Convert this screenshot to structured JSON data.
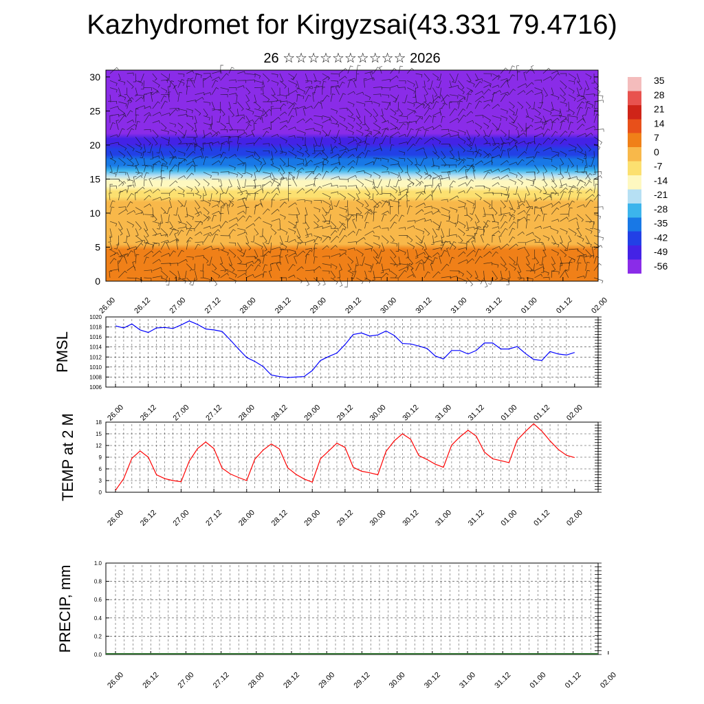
{
  "page": {
    "title": "Kazhydromet for Kirgyzsai(43.331 79.4716)",
    "subtitle": "26 ☆☆☆☆☆☆☆☆☆☆ 2026"
  },
  "chart_data": [
    {
      "id": "upper-air",
      "type": "heatmap",
      "title": "Kazhydromet for Kirgyzsai(43.331 79.4716)",
      "subtitle": "26 ☆☆☆☆☆☆☆☆☆☆ 2026",
      "x_tick_labels": [
        "26.00",
        "26.12",
        "27.00",
        "27.12",
        "28.00",
        "28.12",
        "29.00",
        "29.12",
        "30.00",
        "30.12",
        "31.00",
        "31.12",
        "01.00",
        "01.12",
        "02.00"
      ],
      "y_ticks": [
        0,
        5,
        10,
        15,
        20,
        25,
        30
      ],
      "ylim": [
        0,
        31
      ],
      "colorbar": {
        "labels": [
          "35",
          "28",
          "21",
          "14",
          "7",
          "0",
          "-7",
          "-14",
          "-21",
          "-28",
          "-35",
          "-42",
          "-49",
          "-56"
        ],
        "colors": [
          "#f4bcbc",
          "#e8524e",
          "#cf2418",
          "#e8501a",
          "#f08018",
          "#f8b84a",
          "#fce070",
          "#fef8c0",
          "#b6e0f4",
          "#3cb4ec",
          "#1878e6",
          "#2240e6",
          "#4422e6",
          "#8a2ce8"
        ]
      },
      "temperature_profile": {
        "levels": [
          0,
          3,
          6,
          9,
          12,
          14,
          15.5,
          17,
          19,
          21,
          22,
          23.5,
          26,
          31
        ],
        "values": [
          12,
          9,
          6,
          3,
          0,
          -8,
          -18,
          -28,
          -38,
          -47,
          -55,
          -60,
          -62,
          -64
        ]
      }
    },
    {
      "id": "pmsl",
      "type": "line",
      "ylabel": "PMSL",
      "ylim": [
        1006,
        1020
      ],
      "y_ticks": [
        1006,
        1008,
        1010,
        1012,
        1014,
        1016,
        1018,
        1020
      ],
      "x_tick_labels": [
        "26.00",
        "26.12",
        "27.00",
        "27.12",
        "28.00",
        "28.12",
        "29.00",
        "29.12",
        "30.00",
        "30.12",
        "31.00",
        "31.12",
        "01.00",
        "01.12",
        "02.00"
      ],
      "series": [
        {
          "name": "PMSL",
          "color": "#0000ff",
          "values": [
            1018.2,
            1017.8,
            1018.6,
            1017.4,
            1016.9,
            1017.8,
            1017.9,
            1017.7,
            1018.4,
            1019.2,
            1018.5,
            1017.6,
            1017.4,
            1017.1,
            1015.4,
            1013.6,
            1011.9,
            1011.1,
            1010.1,
            1008.4,
            1008.1,
            1007.9,
            1008.0,
            1008.1,
            1009.3,
            1011.3,
            1012.1,
            1012.8,
            1014.5,
            1016.5,
            1016.8,
            1016.2,
            1016.4,
            1017.2,
            1016.3,
            1014.7,
            1014.6,
            1014.2,
            1013.7,
            1012.2,
            1011.6,
            1013.3,
            1013.3,
            1012.6,
            1013.3,
            1014.8,
            1014.8,
            1013.6,
            1013.6,
            1014.1,
            1012.7,
            1011.5,
            1011.3,
            1013.1,
            1012.6,
            1012.4,
            1012.9
          ]
        }
      ]
    },
    {
      "id": "temp2m",
      "type": "line",
      "ylabel": "TEMP at 2 M",
      "ylim": [
        0,
        18
      ],
      "y_ticks": [
        0,
        3,
        6,
        9,
        12,
        15,
        18
      ],
      "x_tick_labels": [
        "26.00",
        "26.12",
        "27.00",
        "27.12",
        "28.00",
        "28.12",
        "29.00",
        "29.12",
        "30.00",
        "30.12",
        "31.00",
        "31.12",
        "01.00",
        "01.12",
        "02.00"
      ],
      "series": [
        {
          "name": "TEMP at 2 M",
          "color": "#ff0000",
          "values": [
            0.5,
            3.5,
            8.7,
            10.6,
            9.0,
            4.5,
            3.5,
            3.0,
            2.7,
            8.0,
            11.2,
            12.9,
            11.2,
            6.2,
            4.7,
            3.8,
            3.0,
            8.5,
            10.8,
            12.4,
            11.1,
            6.3,
            4.6,
            3.4,
            2.6,
            8.6,
            10.6,
            12.6,
            11.5,
            6.4,
            5.4,
            5.0,
            4.5,
            10.5,
            13.2,
            15.0,
            13.6,
            9.4,
            8.4,
            7.2,
            6.4,
            12.1,
            14.2,
            15.9,
            14.4,
            10.3,
            8.6,
            8.1,
            7.6,
            13.4,
            15.6,
            17.6,
            15.7,
            13.2,
            11.0,
            9.5,
            8.9
          ]
        }
      ]
    },
    {
      "id": "precip",
      "type": "bar",
      "ylabel": "PRECIP, mm",
      "ylim": [
        0,
        1.0
      ],
      "y_ticks": [
        "0.0",
        "0.2",
        "0.4",
        "0.6",
        "0.8",
        "1.0"
      ],
      "x_tick_labels": [
        "26.00",
        "26.12",
        "27.00",
        "27.12",
        "28.00",
        "28.12",
        "29.00",
        "29.12",
        "30.00",
        "30.12",
        "31.00",
        "31.12",
        "01.00",
        "01.12",
        "02.00"
      ],
      "series": [
        {
          "name": "PRECIP, mm",
          "color": "#2f6f2f",
          "values": [
            0,
            0,
            0,
            0,
            0,
            0,
            0,
            0,
            0,
            0,
            0,
            0,
            0,
            0,
            0,
            0,
            0,
            0,
            0,
            0,
            0,
            0,
            0,
            0,
            0,
            0,
            0,
            0,
            0,
            0,
            0,
            0,
            0,
            0,
            0,
            0,
            0,
            0,
            0,
            0,
            0,
            0,
            0,
            0,
            0,
            0,
            0,
            0,
            0,
            0,
            0,
            0,
            0,
            0,
            0,
            0,
            0
          ]
        }
      ]
    }
  ]
}
